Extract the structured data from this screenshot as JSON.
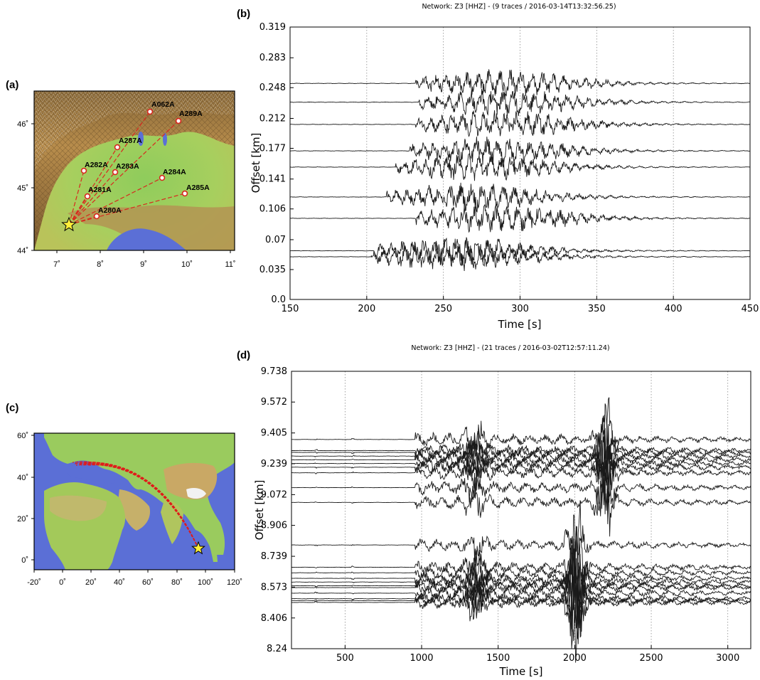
{
  "panels": {
    "a": "(a)",
    "b": "(b)",
    "c": "(c)",
    "d": "(d)"
  },
  "map_a": {
    "x_ticks": [
      "7˚",
      "8˚",
      "9˚",
      "10˚",
      "11˚"
    ],
    "y_ticks": [
      "46˚",
      "45˚",
      "44˚"
    ],
    "source_symbol": "star-icon",
    "stations": [
      {
        "name": "A062A"
      },
      {
        "name": "A289A"
      },
      {
        "name": "A287A"
      },
      {
        "name": "A282A"
      },
      {
        "name": "A283A"
      },
      {
        "name": "A284A"
      },
      {
        "name": "A281A"
      },
      {
        "name": "A285A"
      },
      {
        "name": "A280A"
      }
    ]
  },
  "map_c": {
    "x_ticks": [
      "-20˚",
      "0˚",
      "20˚",
      "40˚",
      "60˚",
      "80˚",
      "100˚",
      "120˚"
    ],
    "y_ticks": [
      "60˚",
      "40˚",
      "20˚",
      "0˚"
    ],
    "source_symbol": "star-icon"
  },
  "chart_data": [
    {
      "type": "line",
      "title": "Network: Z3 [HHZ] - (9 traces / 2016-03-14T13:32:56.25)",
      "xlabel": "Time [s]",
      "ylabel": "Offset [km]",
      "xlim": [
        150,
        450
      ],
      "ylim": [
        0.0,
        0.319
      ],
      "x_ticks": [
        "150",
        "200",
        "250",
        "300",
        "350",
        "400",
        "450"
      ],
      "y_ticks": [
        "0.0",
        "0.035",
        "0.07",
        "0.106",
        "0.141",
        "0.177",
        "0.212",
        "0.248",
        "0.283",
        "0.319"
      ],
      "grid": "vertical dotted",
      "trace_offsets_km": [
        0.05,
        0.057,
        0.095,
        0.12,
        0.155,
        0.174,
        0.205,
        0.231,
        0.253
      ]
    },
    {
      "type": "line",
      "title": "Network: Z3 [HHZ] - (21 traces / 2016-03-02T12:57:11.24)",
      "xlabel": "Time [s]",
      "ylabel": "Offset [km]",
      "xlim": [
        150,
        3150
      ],
      "ylim": [
        8.24,
        9.738
      ],
      "x_ticks": [
        "500",
        "1000",
        "1500",
        "2000",
        "2500",
        "3000"
      ],
      "y_ticks": [
        "8.24",
        "8.406",
        "8.573",
        "8.739",
        "8.906",
        "9.072",
        "9.239",
        "9.405",
        "9.572",
        "9.738"
      ],
      "grid": "vertical dotted",
      "trace_offsets_km": [
        9.37,
        9.31,
        9.3,
        9.28,
        9.26,
        9.24,
        9.22,
        9.19,
        9.11,
        9.03,
        8.8,
        8.68,
        8.65,
        8.62,
        8.58,
        8.57,
        8.54,
        8.51,
        8.5,
        8.49,
        8.6
      ]
    }
  ]
}
